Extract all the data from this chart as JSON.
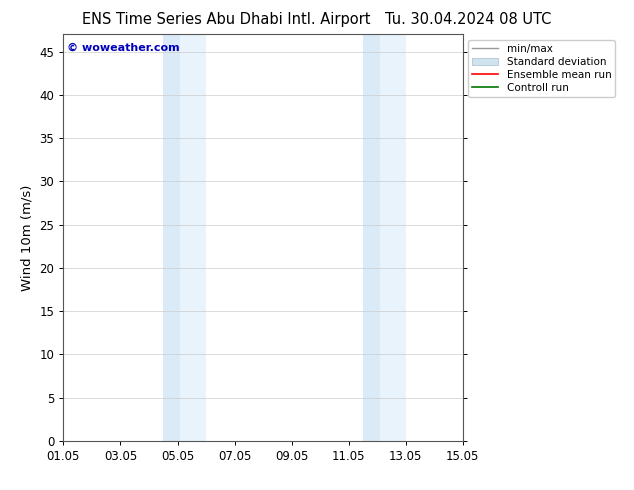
{
  "title_left": "ENS Time Series Abu Dhabi Intl. Airport",
  "title_right": "Tu. 30.04.2024 08 UTC",
  "ylabel": "Wind 10m (m/s)",
  "watermark": "© woweather.com",
  "ylim": [
    0,
    47
  ],
  "yticks": [
    0,
    5,
    10,
    15,
    20,
    25,
    30,
    35,
    40,
    45
  ],
  "xtick_labels": [
    "01.05",
    "03.05",
    "05.05",
    "07.05",
    "09.05",
    "11.05",
    "13.05",
    "15.05"
  ],
  "xtick_positions": [
    0,
    2,
    4,
    6,
    8,
    10,
    12,
    14
  ],
  "xlim": [
    0,
    14
  ],
  "shaded_regions": [
    {
      "xstart": 3.5,
      "xend": 4.1,
      "color": "#dbeaf7"
    },
    {
      "xstart": 4.1,
      "xend": 5.0,
      "color": "#e8f3fb"
    },
    {
      "xstart": 10.5,
      "xend": 11.1,
      "color": "#dbeaf7"
    },
    {
      "xstart": 11.1,
      "xend": 12.0,
      "color": "#e8f3fb"
    }
  ],
  "background_color": "#ffffff",
  "plot_bg_color": "#ffffff",
  "legend_entries": [
    {
      "label": "min/max",
      "color": "#999999",
      "lw": 1.0,
      "ls": "-",
      "type": "line"
    },
    {
      "label": "Standard deviation",
      "color": "#d0e4f0",
      "edge_color": "#aabbcc",
      "type": "patch"
    },
    {
      "label": "Ensemble mean run",
      "color": "#ff0000",
      "lw": 1.2,
      "ls": "-",
      "type": "line"
    },
    {
      "label": "Controll run",
      "color": "#007700",
      "lw": 1.2,
      "ls": "-",
      "type": "line"
    }
  ],
  "title_fontsize": 10.5,
  "tick_fontsize": 8.5,
  "ylabel_fontsize": 9.5,
  "legend_fontsize": 7.5,
  "watermark_color": "#0000bb",
  "watermark_fontsize": 8
}
